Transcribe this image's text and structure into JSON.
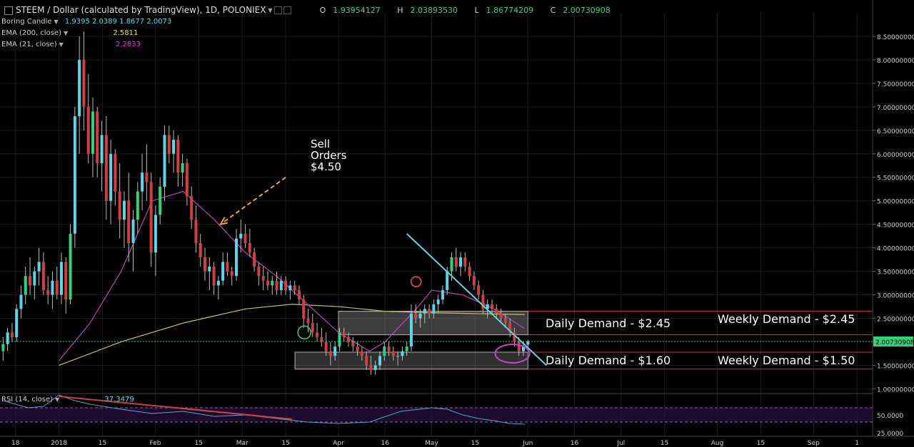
{
  "header": {
    "symbol": "STEEM / Dollar (calculated by TradingView), 1D, POLONIEX",
    "open_label": "O",
    "open": "1.93954127",
    "high_label": "H",
    "high": "2.03893530",
    "low_label": "L",
    "low": "1.86774209",
    "close_label": "C",
    "close": "2.00730908"
  },
  "indicators": {
    "candle": {
      "name": "Boring Candle",
      "values": "1.9395  2.0389  1.8677  2.0073"
    },
    "ema200": {
      "name": "EMA (200, close)",
      "value": "2.5811"
    },
    "ema21": {
      "name": "EMA (21, close)",
      "value": "2.2833"
    },
    "rsi": {
      "name": "RSI (14, close)",
      "value": "37.3479"
    }
  },
  "colors": {
    "up": "#33d17a",
    "down": "#d04040",
    "cyan": "#5fd4e8",
    "ema200": "#c8c060",
    "ema21": "#c040c0",
    "rsi": "#4aa8d8",
    "zone_fill": "#888888",
    "zone_border": "#d03030"
  },
  "annotations": {
    "sell_orders": [
      "Sell",
      "Orders",
      "$4.50"
    ],
    "daily_demand_high": "Daily Demand - $2.45",
    "weekly_demand_high": "Weekly Demand - $2.45",
    "daily_demand_low": "Daily Demand - $1.60",
    "weekly_demand_low": "Weekly Demand - $1.50",
    "last_price": "2.00730908"
  },
  "chart_data": {
    "type": "candlestick",
    "y_ticks": [
      "8.50000000",
      "8.00000000",
      "7.50000000",
      "7.00000000",
      "6.50000000",
      "6.00000000",
      "5.50000000",
      "5.00000000",
      "4.50000000",
      "4.00000000",
      "3.50000000",
      "3.00000000",
      "2.50000000",
      "1.50000000",
      "1.00000000"
    ],
    "y_tick_values": [
      8.5,
      8.0,
      7.5,
      7.0,
      6.5,
      6.0,
      5.5,
      5.0,
      4.5,
      4.0,
      3.5,
      3.0,
      2.5,
      1.5,
      1.0
    ],
    "ylim": [
      0.9,
      9.0
    ],
    "x_ticks": [
      "18",
      "2018",
      "15",
      "Feb",
      "15",
      "Mar",
      "15",
      "Apr",
      "16",
      "May",
      "15",
      "Jun",
      "16",
      "Jul",
      "15",
      "Aug",
      "15",
      "Sep",
      "1"
    ],
    "x_tick_days": [
      -14,
      0,
      14,
      31,
      45,
      59,
      73,
      90,
      105,
      120,
      134,
      151,
      166,
      181,
      195,
      212,
      226,
      243,
      257
    ],
    "xlim": [
      -19,
      262
    ],
    "candles_ohlc": [
      [
        1.8,
        2.1,
        1.6,
        1.95
      ],
      [
        1.95,
        2.3,
        1.8,
        2.2
      ],
      [
        2.2,
        2.4,
        2.0,
        2.1
      ],
      [
        2.1,
        2.8,
        2.0,
        2.7
      ],
      [
        2.7,
        3.2,
        2.5,
        3.0
      ],
      [
        3.0,
        3.6,
        2.8,
        3.4
      ],
      [
        3.4,
        3.8,
        3.0,
        3.2
      ],
      [
        3.2,
        3.6,
        2.9,
        3.5
      ],
      [
        3.5,
        4.0,
        3.2,
        3.7
      ],
      [
        3.7,
        3.9,
        3.0,
        3.1
      ],
      [
        3.1,
        3.4,
        2.8,
        3.0
      ],
      [
        3.0,
        3.5,
        2.7,
        3.3
      ],
      [
        3.3,
        3.6,
        2.9,
        3.0
      ],
      [
        3.0,
        3.9,
        2.8,
        3.7
      ],
      [
        3.7,
        3.8,
        2.6,
        2.9
      ],
      [
        2.9,
        4.5,
        2.8,
        4.3
      ],
      [
        4.3,
        7.0,
        4.0,
        6.8
      ],
      [
        6.8,
        8.5,
        6.0,
        8.0
      ],
      [
        8.0,
        8.6,
        6.5,
        7.0
      ],
      [
        7.0,
        7.7,
        5.8,
        6.0
      ],
      [
        6.0,
        7.2,
        5.5,
        6.9
      ],
      [
        6.9,
        7.0,
        5.5,
        5.8
      ],
      [
        5.8,
        6.7,
        5.2,
        6.4
      ],
      [
        6.4,
        6.8,
        4.6,
        5.0
      ],
      [
        5.0,
        6.3,
        4.5,
        6.0
      ],
      [
        6.0,
        6.1,
        4.9,
        5.2
      ],
      [
        5.2,
        5.8,
        4.2,
        4.6
      ],
      [
        4.6,
        5.2,
        4.0,
        5.0
      ],
      [
        5.0,
        5.6,
        3.7,
        4.1
      ],
      [
        4.1,
        4.8,
        3.5,
        4.6
      ],
      [
        4.6,
        5.4,
        4.3,
        5.2
      ],
      [
        5.2,
        6.0,
        4.8,
        5.6
      ],
      [
        5.6,
        6.2,
        5.0,
        5.4
      ],
      [
        5.4,
        5.6,
        3.6,
        3.9
      ],
      [
        3.9,
        4.9,
        3.4,
        4.7
      ],
      [
        4.7,
        5.5,
        4.5,
        5.3
      ],
      [
        5.3,
        6.6,
        5.0,
        6.4
      ],
      [
        6.4,
        6.6,
        5.8,
        6.0
      ],
      [
        6.0,
        6.5,
        5.6,
        6.3
      ],
      [
        6.3,
        6.4,
        5.3,
        5.6
      ],
      [
        5.6,
        6.0,
        5.3,
        5.8
      ],
      [
        5.8,
        5.9,
        4.9,
        5.1
      ],
      [
        5.1,
        5.3,
        4.4,
        4.6
      ],
      [
        4.6,
        4.9,
        3.9,
        4.1
      ],
      [
        4.1,
        4.3,
        3.6,
        3.8
      ],
      [
        3.8,
        4.0,
        3.3,
        3.5
      ],
      [
        3.5,
        3.8,
        3.1,
        3.6
      ],
      [
        3.6,
        3.7,
        3.0,
        3.2
      ],
      [
        3.2,
        3.4,
        2.9,
        3.3
      ],
      [
        3.3,
        3.9,
        3.2,
        3.7
      ],
      [
        3.7,
        3.9,
        3.4,
        3.5
      ],
      [
        3.5,
        3.6,
        3.2,
        3.4
      ],
      [
        3.4,
        4.4,
        3.3,
        4.2
      ],
      [
        4.2,
        4.6,
        3.9,
        4.3
      ],
      [
        4.3,
        4.5,
        4.0,
        4.1
      ],
      [
        4.1,
        4.4,
        3.8,
        3.9
      ],
      [
        3.9,
        4.0,
        3.5,
        3.6
      ],
      [
        3.6,
        3.7,
        3.2,
        3.4
      ],
      [
        3.4,
        3.6,
        3.1,
        3.3
      ],
      [
        3.3,
        3.5,
        3.1,
        3.2
      ],
      [
        3.2,
        3.4,
        3.0,
        3.3
      ],
      [
        3.3,
        3.5,
        3.0,
        3.1
      ],
      [
        3.1,
        3.4,
        3.0,
        3.3
      ],
      [
        3.3,
        3.4,
        3.0,
        3.1
      ],
      [
        3.1,
        3.3,
        2.9,
        3.2
      ],
      [
        3.2,
        3.3,
        3.0,
        3.1
      ],
      [
        3.1,
        3.2,
        2.8,
        2.9
      ],
      [
        2.9,
        3.0,
        2.3,
        2.5
      ],
      [
        2.5,
        2.7,
        2.2,
        2.4
      ],
      [
        2.4,
        2.6,
        2.1,
        2.2
      ],
      [
        2.2,
        2.4,
        2.0,
        2.1
      ],
      [
        2.1,
        2.3,
        1.9,
        2.0
      ],
      [
        2.0,
        2.2,
        1.7,
        1.8
      ],
      [
        1.8,
        2.0,
        1.5,
        1.7
      ],
      [
        1.7,
        2.0,
        1.6,
        1.9
      ],
      [
        1.9,
        2.3,
        1.8,
        2.2
      ],
      [
        2.2,
        2.3,
        2.0,
        2.1
      ],
      [
        2.1,
        2.2,
        1.9,
        2.0
      ],
      [
        2.0,
        2.1,
        1.8,
        1.9
      ],
      [
        1.9,
        2.0,
        1.7,
        1.8
      ],
      [
        1.8,
        1.9,
        1.6,
        1.7
      ],
      [
        1.7,
        1.8,
        1.4,
        1.5
      ],
      [
        1.5,
        1.7,
        1.3,
        1.4
      ],
      [
        1.4,
        1.6,
        1.3,
        1.5
      ],
      [
        1.5,
        1.8,
        1.4,
        1.7
      ],
      [
        1.7,
        2.0,
        1.6,
        1.9
      ],
      [
        1.9,
        2.0,
        1.7,
        1.8
      ],
      [
        1.8,
        1.9,
        1.6,
        1.7
      ],
      [
        1.7,
        1.8,
        1.5,
        1.7
      ],
      [
        1.7,
        1.9,
        1.6,
        1.8
      ],
      [
        1.8,
        2.0,
        1.7,
        1.9
      ],
      [
        1.9,
        2.8,
        1.8,
        2.6
      ],
      [
        2.6,
        2.8,
        2.4,
        2.5
      ],
      [
        2.5,
        2.7,
        2.3,
        2.6
      ],
      [
        2.6,
        2.8,
        2.4,
        2.7
      ],
      [
        2.7,
        2.8,
        2.5,
        2.6
      ],
      [
        2.6,
        2.9,
        2.5,
        2.8
      ],
      [
        2.8,
        3.0,
        2.6,
        2.9
      ],
      [
        2.9,
        3.2,
        2.8,
        3.1
      ],
      [
        3.1,
        3.6,
        3.0,
        3.5
      ],
      [
        3.5,
        3.9,
        3.3,
        3.8
      ],
      [
        3.8,
        4.0,
        3.5,
        3.6
      ],
      [
        3.6,
        3.9,
        3.4,
        3.8
      ],
      [
        3.8,
        3.9,
        3.5,
        3.6
      ],
      [
        3.6,
        3.7,
        3.3,
        3.4
      ],
      [
        3.4,
        3.5,
        3.1,
        3.2
      ],
      [
        3.2,
        3.3,
        2.9,
        3.0
      ],
      [
        3.0,
        3.1,
        2.6,
        2.7
      ],
      [
        2.7,
        2.9,
        2.5,
        2.8
      ],
      [
        2.8,
        2.9,
        2.6,
        2.7
      ],
      [
        2.7,
        2.8,
        2.5,
        2.6
      ],
      [
        2.6,
        2.7,
        2.4,
        2.5
      ],
      [
        2.5,
        2.6,
        2.3,
        2.4
      ],
      [
        2.4,
        2.5,
        2.1,
        2.2
      ],
      [
        2.2,
        2.3,
        1.9,
        2.0
      ],
      [
        2.0,
        2.1,
        1.7,
        1.8
      ],
      [
        1.8,
        2.0,
        1.7,
        1.9
      ],
      [
        1.94,
        2.04,
        1.87,
        2.01
      ]
    ],
    "ema200": [
      [
        0,
        1.5
      ],
      [
        20,
        2.0
      ],
      [
        40,
        2.4
      ],
      [
        60,
        2.7
      ],
      [
        75,
        2.8
      ],
      [
        90,
        2.75
      ],
      [
        105,
        2.65
      ],
      [
        120,
        2.62
      ],
      [
        135,
        2.6
      ],
      [
        150,
        2.58
      ]
    ],
    "ema21": [
      [
        0,
        1.6
      ],
      [
        10,
        2.4
      ],
      [
        20,
        3.5
      ],
      [
        30,
        5.0
      ],
      [
        40,
        5.2
      ],
      [
        50,
        4.6
      ],
      [
        60,
        3.9
      ],
      [
        70,
        3.4
      ],
      [
        80,
        2.8
      ],
      [
        90,
        2.2
      ],
      [
        100,
        1.8
      ],
      [
        105,
        2.0
      ],
      [
        115,
        2.7
      ],
      [
        120,
        3.1
      ],
      [
        130,
        3.0
      ],
      [
        140,
        2.7
      ],
      [
        150,
        2.28
      ]
    ],
    "rsi": {
      "ylim": [
        20,
        80
      ],
      "ticks": [
        "50.0000",
        "25.0000"
      ],
      "tick_values": [
        50,
        25
      ],
      "bands": [
        60,
        40
      ],
      "values": [
        [
          -18,
          70
        ],
        [
          -10,
          60
        ],
        [
          -5,
          62
        ],
        [
          0,
          78
        ],
        [
          5,
          70
        ],
        [
          10,
          65
        ],
        [
          20,
          58
        ],
        [
          30,
          52
        ],
        [
          40,
          55
        ],
        [
          50,
          48
        ],
        [
          60,
          50
        ],
        [
          70,
          45
        ],
        [
          80,
          40
        ],
        [
          90,
          38
        ],
        [
          100,
          40
        ],
        [
          110,
          55
        ],
        [
          120,
          60
        ],
        [
          125,
          58
        ],
        [
          130,
          50
        ],
        [
          135,
          45
        ],
        [
          140,
          42
        ],
        [
          145,
          38
        ],
        [
          150,
          37
        ]
      ]
    }
  }
}
